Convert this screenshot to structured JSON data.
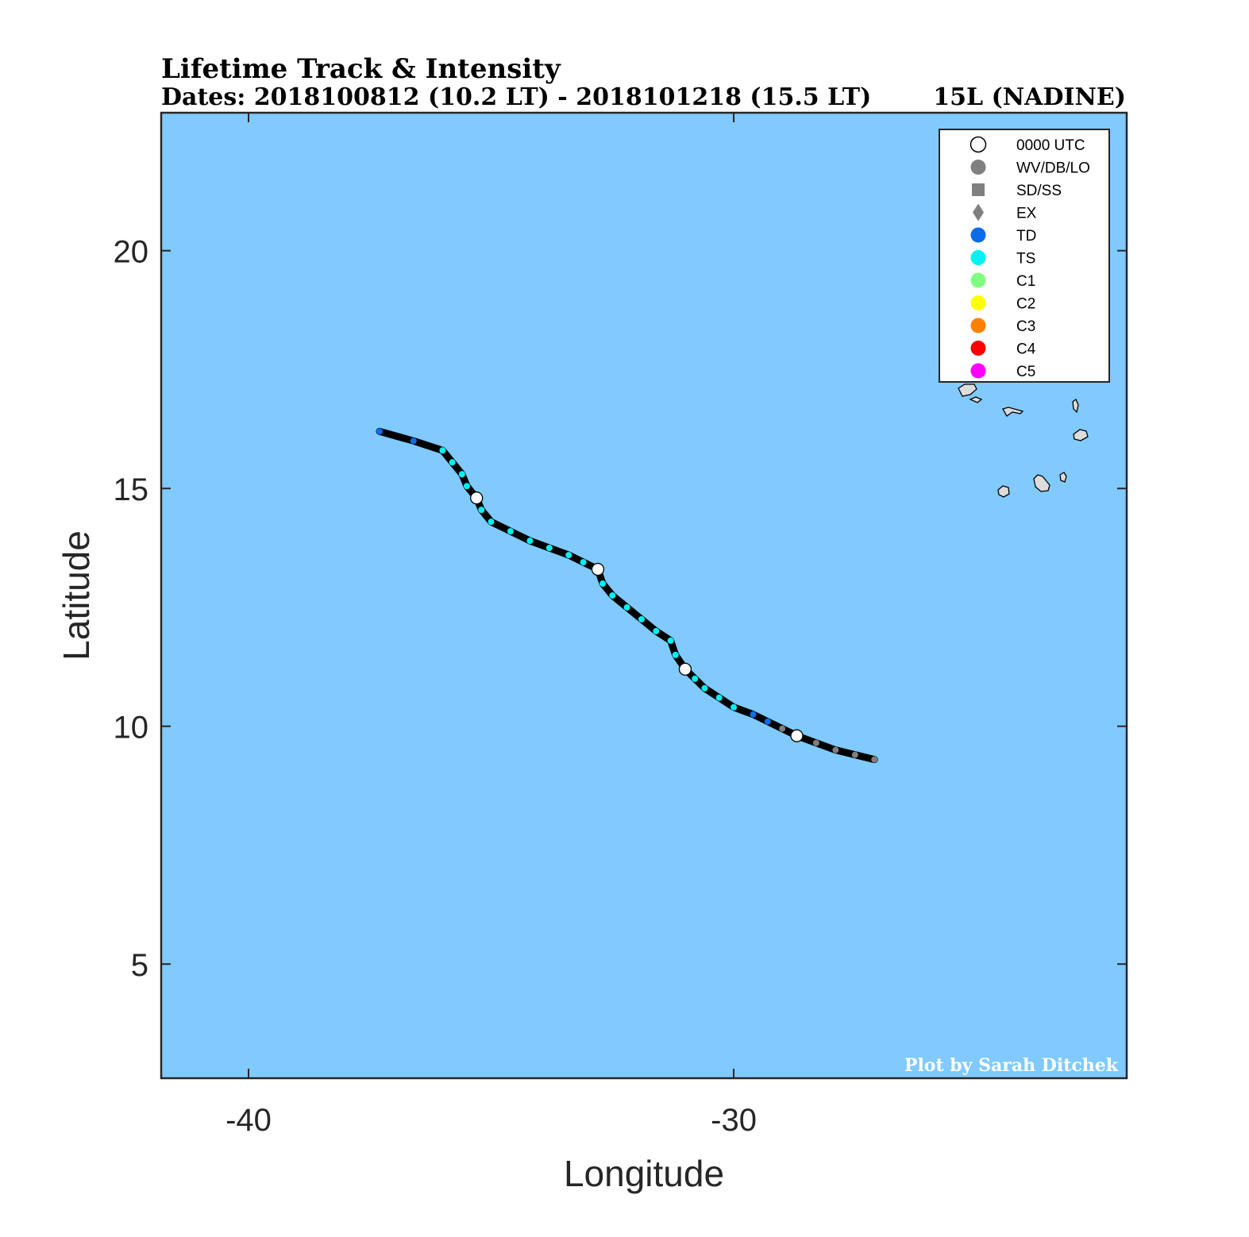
{
  "header": {
    "title": "Lifetime Track & Intensity",
    "dates": "Dates: 2018100812 (10.2 LT) - 2018101218 (15.5 LT)",
    "storm": "15L (NADINE)"
  },
  "axes": {
    "xlabel": "Longitude",
    "ylabel": "Latitude",
    "xlim": [
      -41.8,
      -21.9
    ],
    "ylim": [
      2.6,
      22.9
    ],
    "xticks": [
      {
        "value": -40,
        "label": "-40"
      },
      {
        "value": -30,
        "label": "-30"
      }
    ],
    "yticks": [
      {
        "value": 20,
        "label": "20"
      },
      {
        "value": 15,
        "label": "15"
      },
      {
        "value": 10,
        "label": "10"
      },
      {
        "value": 5,
        "label": "5"
      }
    ]
  },
  "credit": "Plot by Sarah Ditchek",
  "colors": {
    "ocean": "#80caff",
    "land": "#dcdcdc",
    "track": "#000000",
    "TD": "#0a6de6",
    "TS": "#00f2f2",
    "LO": "#7f7f7f",
    "UTC0000": "#ffffff"
  },
  "legend": {
    "position": "top-right",
    "items": [
      {
        "label": "0000 UTC",
        "marker": "circle-open",
        "color": "#ffffff"
      },
      {
        "label": "WV/DB/LO",
        "marker": "circle",
        "color": "#808080"
      },
      {
        "label": "SD/SS",
        "marker": "square",
        "color": "#808080"
      },
      {
        "label": "EX",
        "marker": "diamond",
        "color": "#808080"
      },
      {
        "label": "TD",
        "marker": "circle",
        "color": "#0a6de6"
      },
      {
        "label": "TS",
        "marker": "circle",
        "color": "#00f2f2"
      },
      {
        "label": "C1",
        "marker": "circle",
        "color": "#80ff80"
      },
      {
        "label": "C2",
        "marker": "circle",
        "color": "#ffff00"
      },
      {
        "label": "C3",
        "marker": "circle",
        "color": "#ff8000"
      },
      {
        "label": "C4",
        "marker": "circle",
        "color": "#ff0000"
      },
      {
        "label": "C5",
        "marker": "circle",
        "color": "#ff00ff"
      }
    ]
  },
  "chart_data": {
    "type": "scatter",
    "track": [
      {
        "lon": -27.1,
        "lat": 9.3,
        "cat": "LO"
      },
      {
        "lon": -27.5,
        "lat": 9.4,
        "cat": "LO"
      },
      {
        "lon": -27.9,
        "lat": 9.5,
        "cat": "LO"
      },
      {
        "lon": -28.3,
        "lat": 9.65,
        "cat": "LO"
      },
      {
        "lon": -28.7,
        "lat": 9.8,
        "cat": "UTC0000"
      },
      {
        "lon": -29.0,
        "lat": 9.95,
        "cat": "LO"
      },
      {
        "lon": -29.3,
        "lat": 10.1,
        "cat": "TD"
      },
      {
        "lon": -29.6,
        "lat": 10.25,
        "cat": "TD"
      },
      {
        "lon": -30.0,
        "lat": 10.4,
        "cat": "TS"
      },
      {
        "lon": -30.3,
        "lat": 10.6,
        "cat": "TS"
      },
      {
        "lon": -30.6,
        "lat": 10.8,
        "cat": "TS"
      },
      {
        "lon": -30.8,
        "lat": 11.0,
        "cat": "TS"
      },
      {
        "lon": -31.0,
        "lat": 11.2,
        "cat": "UTC0000"
      },
      {
        "lon": -31.2,
        "lat": 11.5,
        "cat": "TS"
      },
      {
        "lon": -31.3,
        "lat": 11.8,
        "cat": "TS"
      },
      {
        "lon": -31.6,
        "lat": 12.0,
        "cat": "TS"
      },
      {
        "lon": -31.9,
        "lat": 12.25,
        "cat": "TS"
      },
      {
        "lon": -32.2,
        "lat": 12.5,
        "cat": "TS"
      },
      {
        "lon": -32.5,
        "lat": 12.75,
        "cat": "TS"
      },
      {
        "lon": -32.7,
        "lat": 13.0,
        "cat": "TS"
      },
      {
        "lon": -32.8,
        "lat": 13.3,
        "cat": "UTC0000"
      },
      {
        "lon": -33.1,
        "lat": 13.45,
        "cat": "TS"
      },
      {
        "lon": -33.4,
        "lat": 13.6,
        "cat": "TS"
      },
      {
        "lon": -33.8,
        "lat": 13.75,
        "cat": "TS"
      },
      {
        "lon": -34.2,
        "lat": 13.9,
        "cat": "TS"
      },
      {
        "lon": -34.6,
        "lat": 14.1,
        "cat": "TS"
      },
      {
        "lon": -35.0,
        "lat": 14.3,
        "cat": "TS"
      },
      {
        "lon": -35.2,
        "lat": 14.55,
        "cat": "TS"
      },
      {
        "lon": -35.3,
        "lat": 14.8,
        "cat": "UTC0000"
      },
      {
        "lon": -35.5,
        "lat": 15.05,
        "cat": "TS"
      },
      {
        "lon": -35.6,
        "lat": 15.3,
        "cat": "TS"
      },
      {
        "lon": -35.8,
        "lat": 15.55,
        "cat": "TS"
      },
      {
        "lon": -36.0,
        "lat": 15.8,
        "cat": "TS"
      },
      {
        "lon": -36.6,
        "lat": 16.0,
        "cat": "TD"
      },
      {
        "lon": -37.3,
        "lat": 16.2,
        "cat": "TD"
      }
    ],
    "xlim": [
      -41.8,
      -21.9
    ],
    "ylim": [
      2.6,
      22.9
    ],
    "xlabel": "Longitude",
    "ylabel": "Latitude",
    "grid": false,
    "legend": "top-right"
  }
}
